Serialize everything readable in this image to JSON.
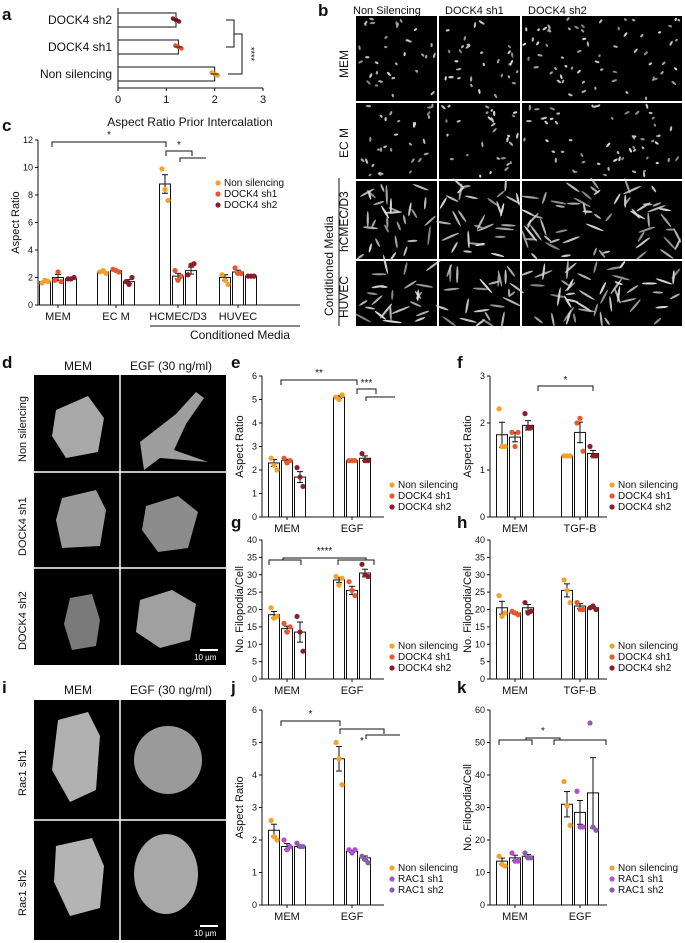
{
  "colors": {
    "s1": "#f7a02a",
    "s2": "#e9572e",
    "s3": "#8b1e2a",
    "p1": "#f7a02a",
    "p2": "#b24fd0",
    "p3": "#8a5fa8"
  },
  "panel_letters": {
    "a": "a",
    "b": "b",
    "c": "c",
    "d": "d",
    "e": "e",
    "f": "f",
    "g": "g",
    "h": "h",
    "i": "i",
    "j": "j",
    "k": "k"
  },
  "micro": {
    "b": {
      "cols": [
        "Non Silencing",
        "DOCK4 sh1",
        "DOCK4 sh2"
      ],
      "rows": [
        "MEM",
        "EC M",
        "hCMEC/D3",
        "HUVEC"
      ],
      "group": "Conditioned Media"
    },
    "d": {
      "cols": [
        "MEM",
        "EGF (30 ng/ml)"
      ],
      "rows": [
        "Non silencing",
        "DOCK4 sh1",
        "DOCK4 sh2"
      ],
      "scale": "10 µm"
    },
    "i": {
      "cols": [
        "MEM",
        "EGF (30 ng/ml)"
      ],
      "rows": [
        "Rac1 sh1",
        "Rac1 sh2"
      ],
      "scale": "10 µm"
    }
  },
  "chart_data": [
    {
      "id": "a",
      "type": "bar",
      "orientation": "horizontal",
      "categories": [
        "DOCK4 sh2",
        "DOCK4 sh1",
        "Non silencing"
      ],
      "values": [
        1.2,
        1.25,
        2.0
      ],
      "xlabel": "Aspect Ratio Prior Intercalation",
      "xlim": [
        0,
        3
      ],
      "xticks": [
        "0",
        "1",
        "2",
        "3"
      ],
      "sig": [
        "****"
      ]
    },
    {
      "id": "c",
      "type": "bar",
      "groups": [
        "MEM",
        "EC M",
        "HCMEC/D3",
        "HUVEC"
      ],
      "group_label": "Conditioned Media",
      "ylabel": "Aspect Ratio",
      "ylim": [
        0,
        12
      ],
      "yticks": [
        "0",
        "2",
        "4",
        "6",
        "8",
        "10",
        "12"
      ],
      "legend": [
        "Non silencing",
        "DOCK4 sh1",
        "DOCK4 sh2"
      ],
      "values": [
        [
          1.7,
          2.0,
          1.9
        ],
        [
          2.4,
          2.5,
          1.7
        ],
        [
          8.8,
          2.1,
          2.5
        ],
        [
          2.0,
          2.4,
          2.1
        ]
      ],
      "points": [
        [
          [
            1.6,
            1.8,
            1.7
          ],
          [
            1.8,
            2.4,
            1.7
          ],
          [
            1.9,
            1.9,
            2.0
          ]
        ],
        [
          [
            2.4,
            2.5,
            2.3
          ],
          [
            2.6,
            2.5,
            2.4
          ],
          [
            1.7,
            1.5,
            2.0
          ]
        ],
        [
          [
            9.9,
            8.4,
            7.6
          ],
          [
            2.5,
            1.8,
            2.1
          ],
          [
            2.2,
            2.9,
            3.0
          ]
        ],
        [
          [
            2.2,
            1.8,
            1.5
          ],
          [
            2.7,
            2.3,
            2.3
          ],
          [
            2.1,
            2.1,
            2.1
          ]
        ]
      ],
      "sig": [
        "*",
        "*"
      ]
    },
    {
      "id": "e",
      "type": "bar",
      "groups": [
        "MEM",
        "EGF"
      ],
      "ylabel": "Aspect Ratio",
      "ylim": [
        0,
        6
      ],
      "yticks": [
        "0",
        "1",
        "2",
        "3",
        "4",
        "5",
        "6"
      ],
      "legend": [
        "Non silencing",
        "DOCK4 sh1",
        "DOCK4 sh2"
      ],
      "values": [
        [
          2.3,
          2.4,
          1.7
        ],
        [
          5.1,
          2.4,
          2.5
        ]
      ],
      "points": [
        [
          [
            2.5,
            2.2,
            2.0
          ],
          [
            2.5,
            2.3,
            2.4
          ],
          [
            2.1,
            1.7,
            1.3
          ]
        ],
        [
          [
            5.1,
            5.0,
            5.2
          ],
          [
            2.4,
            2.4,
            2.4
          ],
          [
            2.7,
            2.4,
            2.4
          ]
        ]
      ],
      "sig": [
        "**",
        "***"
      ]
    },
    {
      "id": "f",
      "type": "bar",
      "groups": [
        "MEM",
        "TGF-B"
      ],
      "ylabel": "Aspect Ratio",
      "ylim": [
        0,
        3
      ],
      "yticks": [
        "0",
        "1",
        "2",
        "3"
      ],
      "legend": [
        "Non silencing",
        "DOCK4 sh1",
        "DOCK4 sh2"
      ],
      "values": [
        [
          1.75,
          1.7,
          1.95
        ],
        [
          1.3,
          1.8,
          1.35
        ]
      ],
      "points": [
        [
          [
            2.3,
            1.5,
            1.5
          ],
          [
            1.8,
            1.5,
            1.8
          ],
          [
            2.2,
            1.9,
            1.9
          ]
        ],
        [
          [
            1.3,
            1.3,
            1.3
          ],
          [
            2.0,
            2.1,
            1.4
          ],
          [
            1.5,
            1.3,
            1.3
          ]
        ]
      ],
      "sig": [
        "*"
      ]
    },
    {
      "id": "g",
      "type": "bar",
      "groups": [
        "MEM",
        "EGF"
      ],
      "ylabel": "No. Filopodia/Cell",
      "ylim": [
        0,
        40
      ],
      "yticks": [
        "0",
        "5",
        "10",
        "15",
        "20",
        "25",
        "30",
        "35",
        "40"
      ],
      "legend": [
        "Non silencing",
        "DOCK4 sh1",
        "DOCK4 sh2"
      ],
      "values": [
        [
          18.5,
          14.5,
          13.5
        ],
        [
          28.5,
          25.5,
          30.5
        ]
      ],
      "points": [
        [
          [
            20.5,
            17.5,
            18.0
          ],
          [
            16.0,
            13.5,
            15.0
          ],
          [
            18.0,
            13.5,
            8.0
          ]
        ],
        [
          [
            29.5,
            27.0,
            29.0
          ],
          [
            28.0,
            25.5,
            24.0
          ],
          [
            33.0,
            30.0,
            29.5
          ]
        ]
      ],
      "sig": [
        "****"
      ]
    },
    {
      "id": "h",
      "type": "bar",
      "groups": [
        "MEM",
        "TGF-B"
      ],
      "ylabel": "No. Filopodia/Cell",
      "ylim": [
        0,
        40
      ],
      "yticks": [
        "0",
        "5",
        "10",
        "15",
        "20",
        "25",
        "30",
        "35",
        "40"
      ],
      "legend": [
        "Non silencing",
        "DOCK4 sh1",
        "DOCK4 sh2"
      ],
      "values": [
        [
          20.5,
          19.0,
          20.5
        ],
        [
          25.5,
          21.0,
          20.5
        ]
      ],
      "points": [
        [
          [
            24.0,
            18.0,
            19.0
          ],
          [
            19.5,
            19.0,
            18.5
          ],
          [
            22.0,
            19.0,
            19.5
          ]
        ],
        [
          [
            28.5,
            25.5,
            22.0
          ],
          [
            22.0,
            20.0,
            20.0
          ],
          [
            20.5,
            21.0,
            20.0
          ]
        ]
      ],
      "sig": []
    },
    {
      "id": "j",
      "type": "bar",
      "groups": [
        "MEM",
        "EGF"
      ],
      "ylabel": "Aspect Ratio",
      "ylim": [
        0,
        6
      ],
      "yticks": [
        "0",
        "1",
        "2",
        "3",
        "4",
        "5",
        "6"
      ],
      "legend": [
        "Non silencing",
        "RAC1 sh1",
        "RAC1 sh2"
      ],
      "values": [
        [
          2.3,
          1.8,
          1.8
        ],
        [
          4.5,
          1.65,
          1.45
        ]
      ],
      "points": [
        [
          [
            2.6,
            2.1,
            2.0
          ],
          [
            2.0,
            1.7,
            1.8
          ],
          [
            1.9,
            1.8,
            1.8
          ]
        ],
        [
          [
            5.0,
            4.5,
            3.7
          ],
          [
            1.7,
            1.6,
            1.7
          ],
          [
            1.5,
            1.4,
            1.3
          ]
        ]
      ],
      "sig": [
        "*",
        "*"
      ]
    },
    {
      "id": "k",
      "type": "bar",
      "groups": [
        "MEM",
        "EGF"
      ],
      "ylabel": "No. Filopodia/Cell",
      "ylim": [
        0,
        60
      ],
      "yticks": [
        "0",
        "10",
        "20",
        "30",
        "40",
        "50",
        "60"
      ],
      "legend": [
        "Non silencing",
        "RAC1 sh1",
        "RAC1 sh2"
      ],
      "values": [
        [
          13.5,
          14.5,
          15.0
        ],
        [
          31.0,
          28.5,
          34.5
        ]
      ],
      "points": [
        [
          [
            15.0,
            12.5,
            12.0
          ],
          [
            16.0,
            13.5,
            13.5
          ],
          [
            16.0,
            14.5,
            14.5
          ]
        ],
        [
          [
            38.0,
            30.5,
            24.5
          ],
          [
            35.0,
            24.0,
            24.0
          ],
          [
            56.0,
            24.0,
            23.0
          ]
        ]
      ],
      "sig": [
        "*"
      ]
    }
  ]
}
